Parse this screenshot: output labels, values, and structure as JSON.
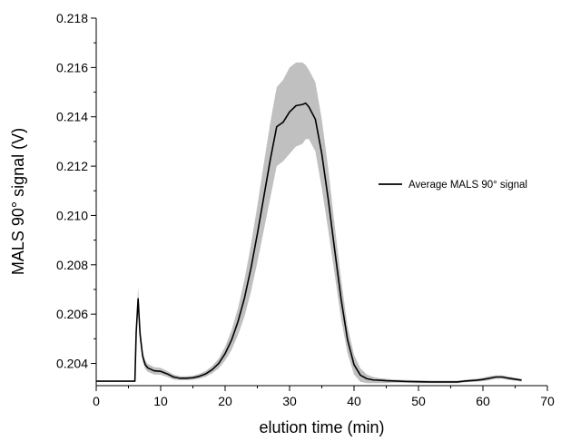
{
  "chart_data": {
    "type": "line",
    "title": "",
    "xlabel": "elution time (min)",
    "ylabel": "MALS 90° signal (V)",
    "xlim": [
      0,
      70
    ],
    "ylim": [
      0.2031,
      0.218
    ],
    "x_ticks": [
      "0",
      "10",
      "20",
      "30",
      "40",
      "50",
      "60",
      "70"
    ],
    "y_ticks": [
      "0.204",
      "0.206",
      "0.208",
      "0.210",
      "0.212",
      "0.214",
      "0.216",
      "0.218"
    ],
    "grid": false,
    "legend": {
      "position": "right",
      "entries": [
        "Average MALS 90° signal"
      ]
    },
    "series": [
      {
        "name": "Average MALS 90° signal",
        "color": "#000000",
        "x": [
          0,
          6.0,
          6.2,
          6.5,
          6.8,
          7.2,
          7.6,
          8.0,
          9.0,
          10.0,
          11.0,
          12.0,
          13.0,
          14.0,
          15.0,
          16.0,
          17.0,
          18.0,
          19.0,
          20.0,
          21.0,
          22.0,
          23.0,
          24.0,
          25.0,
          26.0,
          27.0,
          28.0,
          29.0,
          30.0,
          31.0,
          32.0,
          32.5,
          33.0,
          34.0,
          35.0,
          36.0,
          37.0,
          38.0,
          39.0,
          40.0,
          41.0,
          42.0,
          43.0,
          44.0,
          45.0,
          46.0,
          47.0,
          48.0,
          50.0,
          52.0,
          54.0,
          56.0,
          57.0,
          58.0,
          59.0,
          60.0,
          61.0,
          62.0,
          63.0,
          64.0,
          65.0,
          66.0
        ],
        "y": [
          0.20328,
          0.20328,
          0.20525,
          0.20662,
          0.2052,
          0.2043,
          0.20395,
          0.20382,
          0.2037,
          0.20368,
          0.20358,
          0.20345,
          0.2034,
          0.2034,
          0.20342,
          0.20348,
          0.20358,
          0.20375,
          0.204,
          0.2044,
          0.20495,
          0.2057,
          0.20665,
          0.20785,
          0.20925,
          0.21075,
          0.21225,
          0.2136,
          0.21378,
          0.2142,
          0.21445,
          0.2145,
          0.21455,
          0.2144,
          0.2139,
          0.2125,
          0.21065,
          0.2086,
          0.2066,
          0.20495,
          0.20395,
          0.20352,
          0.20338,
          0.20333,
          0.20332,
          0.2033,
          0.20329,
          0.20328,
          0.20327,
          0.20326,
          0.20325,
          0.20325,
          0.20325,
          0.20328,
          0.2033,
          0.20332,
          0.20335,
          0.2034,
          0.20345,
          0.20345,
          0.2034,
          0.20336,
          0.20332
        ],
        "band": {
          "color": "#c0c0c0",
          "upper": [
            0.20328,
            0.20328,
            0.20555,
            0.2071,
            0.2055,
            0.2045,
            0.20412,
            0.20398,
            0.20385,
            0.20382,
            0.2037,
            0.20355,
            0.20348,
            0.20348,
            0.2035,
            0.20358,
            0.2037,
            0.2039,
            0.2042,
            0.20468,
            0.20535,
            0.20625,
            0.2074,
            0.2088,
            0.2104,
            0.2121,
            0.21375,
            0.2152,
            0.2155,
            0.216,
            0.2162,
            0.2162,
            0.2161,
            0.2159,
            0.2154,
            0.2139,
            0.2119,
            0.2096,
            0.2074,
            0.2055,
            0.20435,
            0.2038,
            0.20355,
            0.20345,
            0.2034,
            0.20338,
            0.20335,
            0.20334,
            0.20333,
            0.20332,
            0.2033,
            0.2033,
            0.2033,
            0.20333,
            0.20336,
            0.20338,
            0.20342,
            0.20348,
            0.20352,
            0.20352,
            0.20347,
            0.20342,
            0.20338
          ],
          "lower": [
            0.20328,
            0.20328,
            0.20495,
            0.2063,
            0.2049,
            0.2041,
            0.20378,
            0.20366,
            0.20355,
            0.20354,
            0.20346,
            0.20335,
            0.20332,
            0.20332,
            0.20334,
            0.20338,
            0.20346,
            0.2036,
            0.2038,
            0.20412,
            0.20455,
            0.20515,
            0.2059,
            0.2069,
            0.2081,
            0.2094,
            0.2107,
            0.212,
            0.2122,
            0.2125,
            0.2128,
            0.2129,
            0.2131,
            0.2131,
            0.2126,
            0.2111,
            0.2094,
            0.2076,
            0.2058,
            0.2044,
            0.20355,
            0.20325,
            0.2032,
            0.2032,
            0.2032,
            0.2032,
            0.20322,
            0.20322,
            0.20321,
            0.2032,
            0.2032,
            0.2032,
            0.2032,
            0.20323,
            0.20325,
            0.20326,
            0.20328,
            0.20332,
            0.20338,
            0.20338,
            0.20333,
            0.2033,
            0.20326
          ]
        }
      }
    ]
  }
}
